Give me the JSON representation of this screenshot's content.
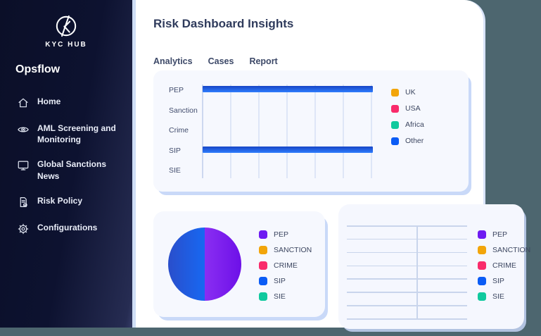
{
  "app": {
    "background_color": "#4d666f",
    "panel_color": "#ffffff",
    "card_color": "#f6f8fe"
  },
  "sidebar": {
    "background_from": "#0b0f28",
    "background_to": "#2c3260",
    "brand": {
      "logo_icon": "kychub-logo-icon",
      "logo_text": "KYC HUB"
    },
    "app_title": "Opsflow",
    "items": [
      {
        "label": "Home",
        "icon": "home-icon"
      },
      {
        "label": "AML Screening and Monitoring",
        "icon": "eye-icon"
      },
      {
        "label": "Global Sanctions News",
        "icon": "monitor-icon"
      },
      {
        "label": "Risk Policy",
        "icon": "document-check-icon"
      },
      {
        "label": "Configurations",
        "icon": "gear-icon"
      }
    ]
  },
  "main": {
    "title": "Risk Dashboard Insights",
    "tabs": [
      {
        "label": "Analytics"
      },
      {
        "label": "Cases"
      },
      {
        "label": "Report"
      }
    ]
  },
  "bar_chart": {
    "categories": [
      "PEP",
      "Sanction",
      "Crime",
      "SIP",
      "SIE"
    ],
    "values_pct": [
      100,
      0,
      0,
      100,
      0
    ],
    "bar_color_top": "#1745c6",
    "bar_color_bottom": "#2f7dfd",
    "gridline_count": 6,
    "legend": [
      {
        "label": "UK",
        "color": "#f2a50a"
      },
      {
        "label": "USA",
        "color": "#f92b6b"
      },
      {
        "label": "Africa",
        "color": "#10c99e"
      },
      {
        "label": "Other",
        "color": "#0b5cf5"
      }
    ]
  },
  "pie_chart": {
    "slices": [
      {
        "label": "SIP",
        "value": 50,
        "color_from": "#2a4ecb",
        "color_to": "#1768f2"
      },
      {
        "label": "PEP",
        "value": 50,
        "color_from": "#8a2ef2",
        "color_to": "#6d10e8"
      }
    ],
    "legend": [
      {
        "label": "PEP",
        "color": "#6e1bf2"
      },
      {
        "label": "SANCTION",
        "color": "#f2a50a"
      },
      {
        "label": "CRIME",
        "color": "#f92b6b"
      },
      {
        "label": "SIP",
        "color": "#0b5cf5"
      },
      {
        "label": "SIE",
        "color": "#10c99e"
      }
    ]
  },
  "table_chart": {
    "rows": 7,
    "columns": 2,
    "cells_empty": true,
    "legend": [
      {
        "label": "PEP",
        "color": "#6e1bf2"
      },
      {
        "label": "SANCTION",
        "color": "#f2a50a"
      },
      {
        "label": "CRIME",
        "color": "#f92b6b"
      },
      {
        "label": "SIP",
        "color": "#0b5cf5"
      },
      {
        "label": "SIE",
        "color": "#10c99e"
      }
    ]
  },
  "chart_data": [
    {
      "type": "bar",
      "orientation": "horizontal",
      "categories": [
        "PEP",
        "Sanction",
        "Crime",
        "SIP",
        "SIE"
      ],
      "values": [
        100,
        0,
        0,
        100,
        0
      ],
      "value_note": "percent of axis width; PEP and SIP bars span the full axis, no numeric tick labels shown",
      "legend_entries": [
        "UK",
        "USA",
        "Africa",
        "Other"
      ],
      "legend_position": "right",
      "grid": "vertical-only"
    },
    {
      "type": "pie",
      "labels": [
        "SIP",
        "PEP"
      ],
      "values": [
        50,
        50
      ],
      "legend_entries": [
        "PEP",
        "SANCTION",
        "CRIME",
        "SIP",
        "SIE"
      ],
      "legend_position": "right"
    },
    {
      "type": "table",
      "rows": 7,
      "columns": 2,
      "cells": "empty",
      "legend_entries": [
        "PEP",
        "SANCTION",
        "CRIME",
        "SIP",
        "SIE"
      ],
      "legend_position": "right"
    }
  ]
}
